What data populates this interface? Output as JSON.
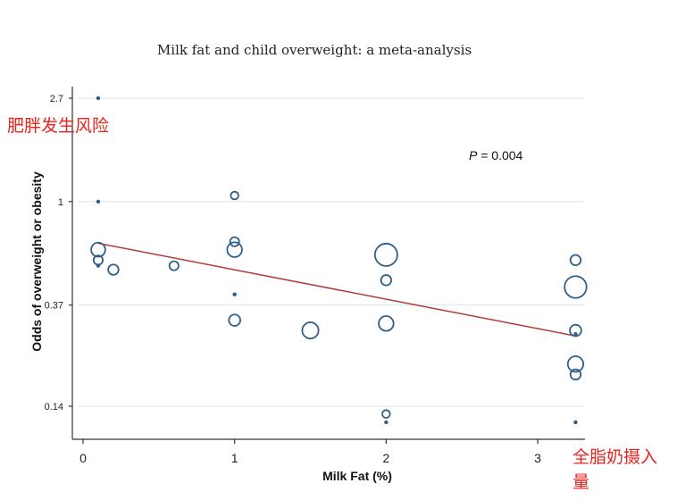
{
  "chart_data": {
    "type": "scatter",
    "title": "Milk fat and child overweight: a meta-analysis",
    "xlabel": "Milk Fat (%)",
    "ylabel": "Odds of overweight or obesity",
    "y_scale": "log",
    "xlim": [
      -0.1,
      3.3
    ],
    "ylim": [
      0.115,
      3.0
    ],
    "x_ticks": [
      0,
      1,
      2,
      3
    ],
    "y_ticks": [
      2.7,
      1,
      0.37,
      0.14
    ],
    "y_tick_labels": [
      "2.7",
      "1",
      "0.37",
      "0.14"
    ],
    "grid": "horizontal",
    "annotation": "P = 0.004",
    "points": [
      {
        "x": 0.1,
        "y": 2.7,
        "size": 1
      },
      {
        "x": 0.1,
        "y": 1.0,
        "size": 1
      },
      {
        "x": 0.1,
        "y": 0.63,
        "size": 8
      },
      {
        "x": 0.1,
        "y": 0.57,
        "size": 3
      },
      {
        "x": 0.1,
        "y": 0.54,
        "size": 1
      },
      {
        "x": 0.2,
        "y": 0.52,
        "size": 4
      },
      {
        "x": 0.6,
        "y": 0.54,
        "size": 3
      },
      {
        "x": 1.0,
        "y": 1.06,
        "size": 2
      },
      {
        "x": 1.0,
        "y": 0.68,
        "size": 3
      },
      {
        "x": 1.0,
        "y": 0.63,
        "size": 9
      },
      {
        "x": 1.0,
        "y": 0.41,
        "size": 1
      },
      {
        "x": 1.0,
        "y": 0.32,
        "size": 5
      },
      {
        "x": 1.5,
        "y": 0.29,
        "size": 11
      },
      {
        "x": 2.0,
        "y": 0.6,
        "size": 22
      },
      {
        "x": 2.0,
        "y": 0.47,
        "size": 4
      },
      {
        "x": 2.0,
        "y": 0.31,
        "size": 9
      },
      {
        "x": 2.0,
        "y": 0.13,
        "size": 2
      },
      {
        "x": 2.0,
        "y": 0.12,
        "size": 1
      },
      {
        "x": 3.25,
        "y": 0.57,
        "size": 4
      },
      {
        "x": 3.25,
        "y": 0.44,
        "size": 21
      },
      {
        "x": 3.25,
        "y": 0.29,
        "size": 5
      },
      {
        "x": 3.25,
        "y": 0.28,
        "size": 1
      },
      {
        "x": 3.25,
        "y": 0.21,
        "size": 10
      },
      {
        "x": 3.25,
        "y": 0.19,
        "size": 4
      },
      {
        "x": 3.25,
        "y": 0.12,
        "size": 1
      }
    ],
    "trend_line": {
      "x": [
        0.1,
        3.25
      ],
      "y": [
        0.67,
        0.275
      ]
    }
  },
  "labels": {
    "risk_label": "肥胖发生风险",
    "intake_label": "全脂奶摄入量"
  },
  "colors": {
    "bubble": "#2f5f87",
    "trend": "#b03a3a",
    "annotation_cn": "#e8231c",
    "grid": "#d9e6ee"
  }
}
